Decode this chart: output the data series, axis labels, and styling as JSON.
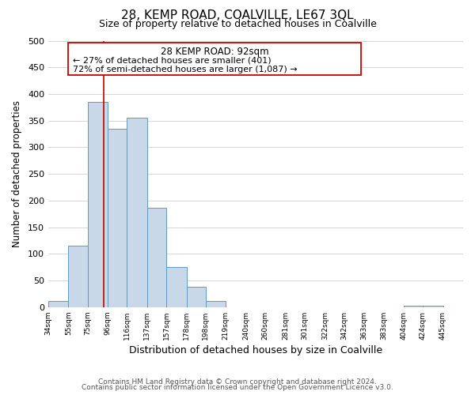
{
  "title": "28, KEMP ROAD, COALVILLE, LE67 3QL",
  "subtitle": "Size of property relative to detached houses in Coalville",
  "xlabel": "Distribution of detached houses by size in Coalville",
  "ylabel": "Number of detached properties",
  "bar_left_edges": [
    34,
    55,
    75,
    96,
    116,
    137,
    157,
    178,
    198,
    219,
    240,
    260,
    281,
    301,
    322,
    342,
    363,
    383,
    404,
    424
  ],
  "bar_widths": [
    21,
    20,
    21,
    20,
    21,
    20,
    21,
    20,
    21,
    21,
    20,
    21,
    20,
    21,
    20,
    21,
    20,
    21,
    20,
    21
  ],
  "bar_heights": [
    12,
    116,
    385,
    335,
    355,
    187,
    76,
    38,
    12,
    0,
    0,
    0,
    0,
    0,
    0,
    0,
    0,
    0,
    2,
    2
  ],
  "bar_color": "#c8d8e8",
  "bar_edge_color": "#6699bb",
  "tick_labels": [
    "34sqm",
    "55sqm",
    "75sqm",
    "96sqm",
    "116sqm",
    "137sqm",
    "157sqm",
    "178sqm",
    "198sqm",
    "219sqm",
    "240sqm",
    "260sqm",
    "281sqm",
    "301sqm",
    "322sqm",
    "342sqm",
    "363sqm",
    "383sqm",
    "404sqm",
    "424sqm",
    "445sqm"
  ],
  "ylim": [
    0,
    500
  ],
  "yticks": [
    0,
    50,
    100,
    150,
    200,
    250,
    300,
    350,
    400,
    450,
    500
  ],
  "xlim_left": 34,
  "xlim_right": 466,
  "property_line_x": 92,
  "property_line_color": "#cc0000",
  "annotation_title": "28 KEMP ROAD: 92sqm",
  "annotation_line1": "← 27% of detached houses are smaller (401)",
  "annotation_line2": "72% of semi-detached houses are larger (1,087) →",
  "footer_line1": "Contains HM Land Registry data © Crown copyright and database right 2024.",
  "footer_line2": "Contains public sector information licensed under the Open Government Licence v3.0.",
  "background_color": "#ffffff",
  "grid_color": "#d0d0d0"
}
